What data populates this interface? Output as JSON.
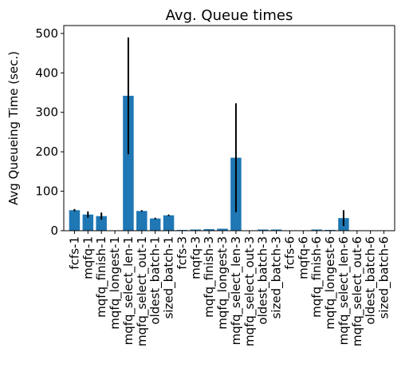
{
  "chart_data": {
    "type": "bar",
    "title": "Avg. Queue times",
    "xlabel": "",
    "ylabel": "Avg Queueing Time (sec.)",
    "ylim": [
      0,
      520
    ],
    "yticks": [
      0,
      100,
      200,
      300,
      400,
      500
    ],
    "grid": false,
    "legend": "none",
    "bar_color": "#1f77b4",
    "error_bar_color": "#000000",
    "categories": [
      "fcfs-1",
      "mqfq-1",
      "mqfq_finish-1",
      "mqfq_longest-1",
      "mqfq_select_len-1",
      "mqfq_select_out-1",
      "oldest_batch-1",
      "sized_batch-1",
      "fcfs-3",
      "mqfq-3",
      "mqfq_finish-3",
      "mqfq_longest-3",
      "mqfq_select_len-3",
      "mqfq_select_out-3",
      "oldest_batch-3",
      "sized_batch-3",
      "fcfs-6",
      "mqfq-6",
      "mqfq_finish-6",
      "mqfq_longest-6",
      "mqfq_select_len-6",
      "mqfq_select_out-6",
      "oldest_batch-6",
      "sized_batch-6"
    ],
    "values": [
      52,
      41,
      37,
      0,
      342,
      50,
      31,
      39,
      2,
      3,
      4,
      5,
      185,
      0,
      3,
      3,
      0,
      1,
      3,
      2,
      32,
      0,
      0,
      0
    ],
    "errors": [
      3,
      8,
      9,
      0,
      148,
      2,
      2,
      2,
      0,
      0,
      0,
      0,
      138,
      0,
      0,
      0,
      0,
      0,
      0,
      0,
      20,
      0,
      0,
      0
    ]
  }
}
